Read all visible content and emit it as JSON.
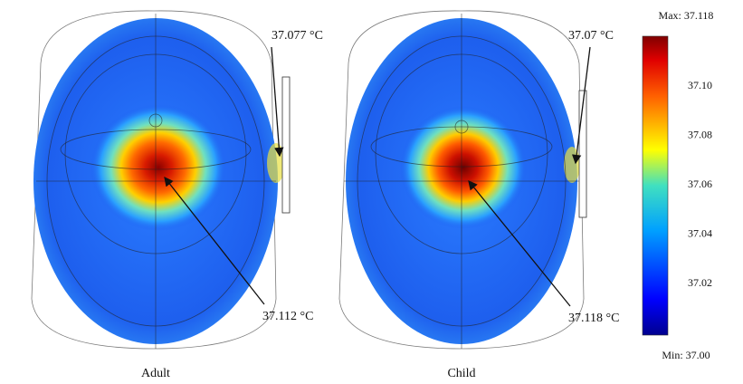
{
  "panels": [
    {
      "label": "Adult",
      "annotations": [
        "37.077 °C",
        "37.112 °C"
      ]
    },
    {
      "label": "Child",
      "annotations": [
        "37.07 °C",
        "37.118 °C"
      ]
    }
  ],
  "colorbar": {
    "max_label": "Max: 37.118",
    "min_label": "Min: 37.00",
    "ticks": [
      "37.10",
      "37.08",
      "37.06",
      "37.04",
      "37.02"
    ]
  }
}
